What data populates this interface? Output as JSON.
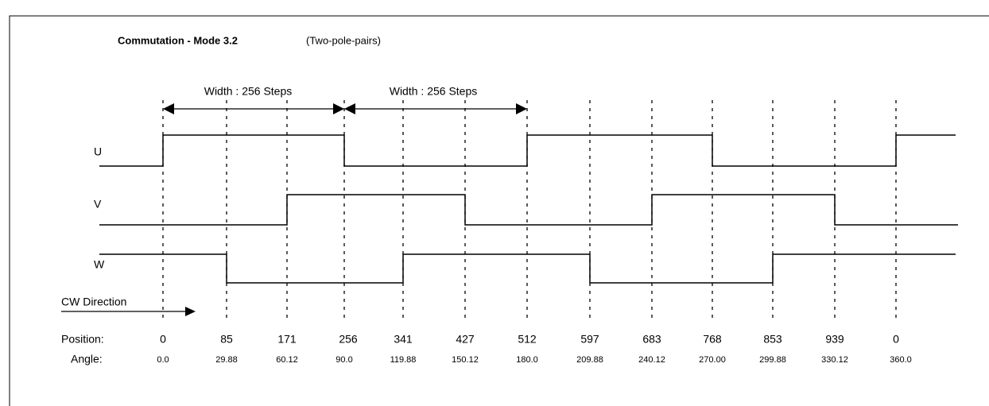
{
  "title": "Commutation - Mode 3.2",
  "subtitle": "(Two-pole-pairs)",
  "widths": [
    "Width : 256 Steps",
    "Width : 256 Steps"
  ],
  "signals": [
    "U",
    "V",
    "W"
  ],
  "direction": "CW Direction",
  "position_label": "Position:",
  "positions": [
    "0",
    "85",
    "171",
    "256",
    "341",
    "427",
    "512",
    "597",
    "683",
    "768",
    "853",
    "939",
    "0"
  ],
  "angle_label": "Angle:",
  "angles": [
    "0.0",
    "29.88",
    "60.12",
    "90.0",
    "119.88",
    "150.12",
    "180.0",
    "209.88",
    "240.12",
    "270.00",
    "299.88",
    "330.12",
    "360.0"
  ]
}
